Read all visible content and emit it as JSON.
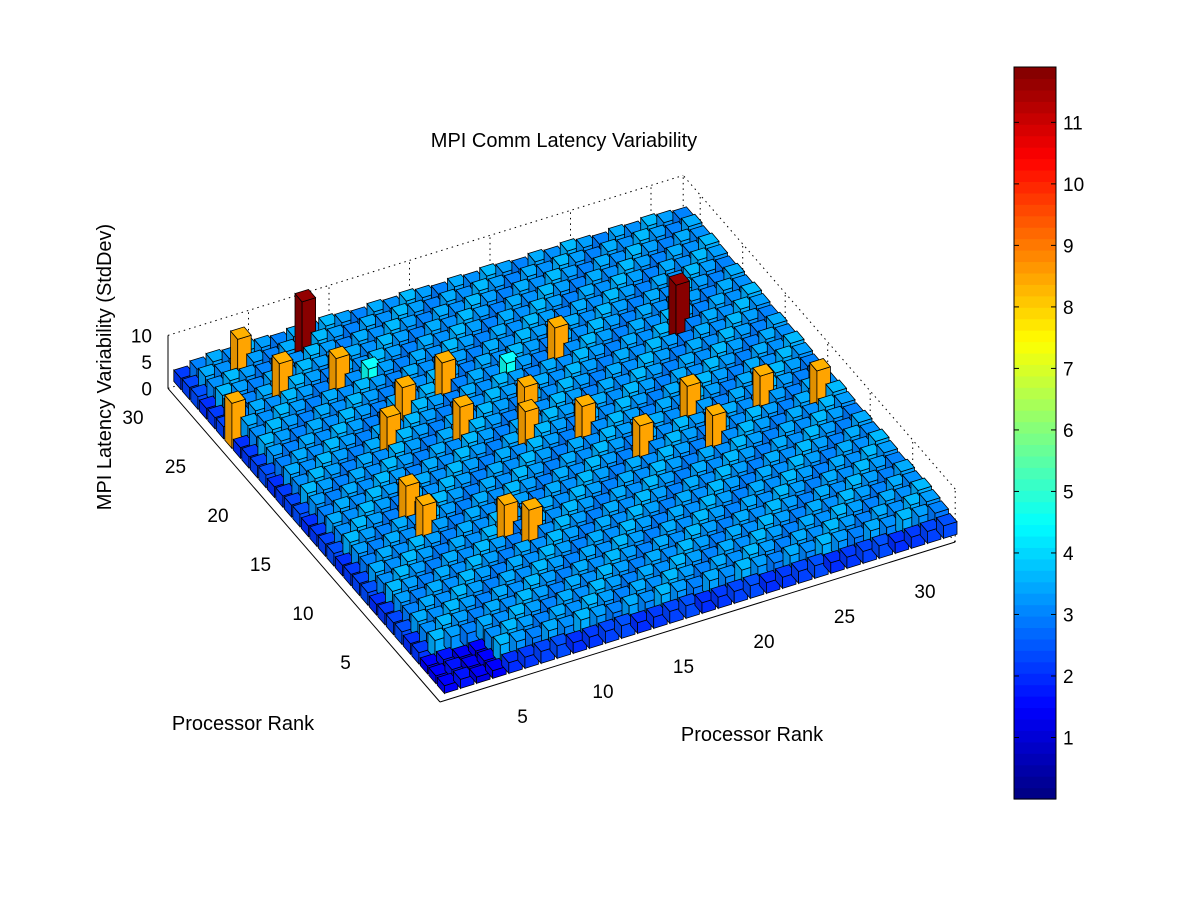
{
  "chart_data": {
    "type": "bar3",
    "title": "MPI Comm Latency Variability",
    "xlabel": "Processor Rank",
    "ylabel": "Processor Rank",
    "zlabel": "MPI Latency Variability (StdDev)",
    "x_ticks": [
      "5",
      "10",
      "15",
      "20",
      "25",
      "30"
    ],
    "y_ticks": [
      "5",
      "10",
      "15",
      "20",
      "25",
      "30"
    ],
    "z_ticks": [
      "0",
      "5",
      "10"
    ],
    "xlim": [
      0,
      32
    ],
    "ylim": [
      0,
      32
    ],
    "zlim": [
      0,
      10
    ],
    "grid": true,
    "grid_size": 32,
    "baseline": {
      "interior_value": 3.2,
      "edge_value": 2.0,
      "low_block_value": 1.2
    },
    "highlights": [
      {
        "x": 8,
        "y": 31,
        "value": 11.8
      },
      {
        "x": 27,
        "y": 23,
        "value": 11.8
      },
      {
        "x": 1,
        "y": 26,
        "value": 8.5
      },
      {
        "x": 4,
        "y": 31,
        "value": 8.5
      },
      {
        "x": 5,
        "y": 28,
        "value": 8.5
      },
      {
        "x": 8,
        "y": 27,
        "value": 8.5
      },
      {
        "x": 10,
        "y": 23,
        "value": 8.5
      },
      {
        "x": 13,
        "y": 24,
        "value": 8.5
      },
      {
        "x": 20,
        "y": 24,
        "value": 8.5
      },
      {
        "x": 16,
        "y": 20,
        "value": 8.5
      },
      {
        "x": 24,
        "y": 16,
        "value": 8.5
      },
      {
        "x": 28,
        "y": 15,
        "value": 8.5
      },
      {
        "x": 31,
        "y": 14,
        "value": 8.5
      },
      {
        "x": 8,
        "y": 21,
        "value": 8.5
      },
      {
        "x": 12,
        "y": 20,
        "value": 8.5
      },
      {
        "x": 15,
        "y": 18,
        "value": 8.5
      },
      {
        "x": 18,
        "y": 17,
        "value": 8.5
      },
      {
        "x": 20,
        "y": 14,
        "value": 8.5
      },
      {
        "x": 24,
        "y": 13,
        "value": 8.5
      },
      {
        "x": 6,
        "y": 15,
        "value": 8.5
      },
      {
        "x": 6,
        "y": 13,
        "value": 8.5
      },
      {
        "x": 10,
        "y": 11,
        "value": 8.5
      },
      {
        "x": 11,
        "y": 10,
        "value": 8.5
      },
      {
        "x": 10,
        "y": 27,
        "value": 4.6
      },
      {
        "x": 17,
        "y": 24,
        "value": 4.6
      }
    ],
    "colorbar": {
      "colormap": "jet",
      "range": [
        0,
        11.9
      ],
      "ticks": [
        "1",
        "2",
        "3",
        "4",
        "5",
        "6",
        "7",
        "8",
        "9",
        "10",
        "11"
      ],
      "location": "right"
    }
  }
}
